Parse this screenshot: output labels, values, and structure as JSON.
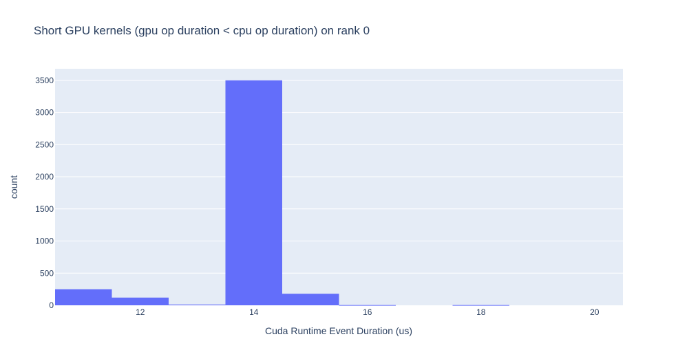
{
  "chart_data": {
    "type": "histogram",
    "title": "Short GPU kernels (gpu op duration < cpu op duration) on rank 0",
    "xlabel": "Cuda Runtime Event Duration (us)",
    "ylabel": "count",
    "xlim": [
      10.5,
      20.5
    ],
    "ylim": [
      0,
      3680
    ],
    "bin_width": 1,
    "bins": [
      {
        "x0": 10.5,
        "x1": 11.5,
        "count": 250
      },
      {
        "x0": 11.5,
        "x1": 12.5,
        "count": 120
      },
      {
        "x0": 12.5,
        "x1": 13.5,
        "count": 12
      },
      {
        "x0": 13.5,
        "x1": 14.5,
        "count": 3500
      },
      {
        "x0": 14.5,
        "x1": 15.5,
        "count": 180
      },
      {
        "x0": 15.5,
        "x1": 16.5,
        "count": 4
      },
      {
        "x0": 16.5,
        "x1": 17.5,
        "count": 0
      },
      {
        "x0": 17.5,
        "x1": 18.5,
        "count": 4
      },
      {
        "x0": 18.5,
        "x1": 19.5,
        "count": 0
      },
      {
        "x0": 19.5,
        "x1": 20.5,
        "count": 0
      }
    ],
    "x_ticks": [
      12,
      14,
      16,
      18,
      20
    ],
    "y_ticks": [
      0,
      500,
      1000,
      1500,
      2000,
      2500,
      3000,
      3500
    ],
    "grid": true,
    "colors": {
      "bar": "#636efa",
      "plot_bg": "#e5ecf6",
      "grid": "#ffffff",
      "text": "#2a3f5f"
    }
  }
}
